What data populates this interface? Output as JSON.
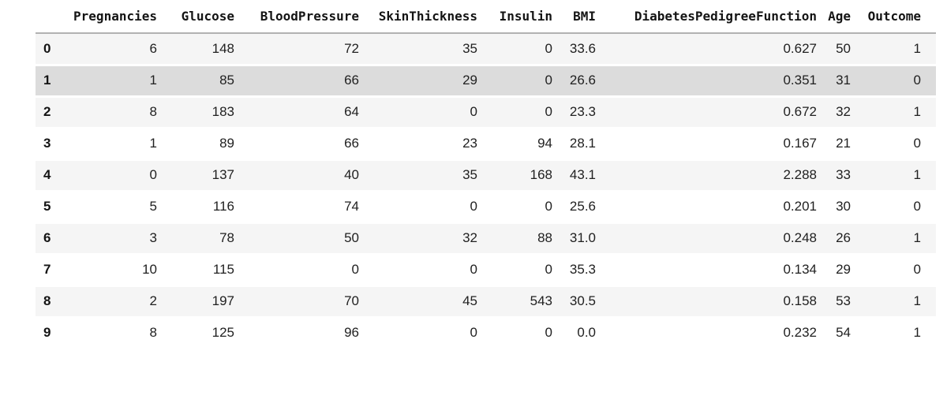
{
  "colors": {
    "row_even_bg": "#f5f5f5",
    "row_odd_bg": "#ffffff",
    "highlighted_row_bg": "#dcdcdc",
    "header_border": "#b2b2b2",
    "header_text": "#141414",
    "cell_text": "#212121"
  },
  "table": {
    "index_header": "",
    "columns": [
      "Pregnancies",
      "Glucose",
      "BloodPressure",
      "SkinThickness",
      "Insulin",
      "BMI",
      "DiabetesPedigreeFunction",
      "Age",
      "Outcome"
    ],
    "rows": [
      {
        "index": "0",
        "highlight": false,
        "cells": [
          "6",
          "148",
          "72",
          "35",
          "0",
          "33.6",
          "0.627",
          "50",
          "1"
        ]
      },
      {
        "index": "1",
        "highlight": true,
        "cells": [
          "1",
          "85",
          "66",
          "29",
          "0",
          "26.6",
          "0.351",
          "31",
          "0"
        ]
      },
      {
        "index": "2",
        "highlight": false,
        "cells": [
          "8",
          "183",
          "64",
          "0",
          "0",
          "23.3",
          "0.672",
          "32",
          "1"
        ]
      },
      {
        "index": "3",
        "highlight": false,
        "cells": [
          "1",
          "89",
          "66",
          "23",
          "94",
          "28.1",
          "0.167",
          "21",
          "0"
        ]
      },
      {
        "index": "4",
        "highlight": false,
        "cells": [
          "0",
          "137",
          "40",
          "35",
          "168",
          "43.1",
          "2.288",
          "33",
          "1"
        ]
      },
      {
        "index": "5",
        "highlight": false,
        "cells": [
          "5",
          "116",
          "74",
          "0",
          "0",
          "25.6",
          "0.201",
          "30",
          "0"
        ]
      },
      {
        "index": "6",
        "highlight": false,
        "cells": [
          "3",
          "78",
          "50",
          "32",
          "88",
          "31.0",
          "0.248",
          "26",
          "1"
        ]
      },
      {
        "index": "7",
        "highlight": false,
        "cells": [
          "10",
          "115",
          "0",
          "0",
          "0",
          "35.3",
          "0.134",
          "29",
          "0"
        ]
      },
      {
        "index": "8",
        "highlight": false,
        "cells": [
          "2",
          "197",
          "70",
          "45",
          "543",
          "30.5",
          "0.158",
          "53",
          "1"
        ]
      },
      {
        "index": "9",
        "highlight": false,
        "cells": [
          "8",
          "125",
          "96",
          "0",
          "0",
          "0.0",
          "0.232",
          "54",
          "1"
        ]
      }
    ]
  },
  "chart_data": {
    "type": "table",
    "title": "",
    "columns": [
      "Pregnancies",
      "Glucose",
      "BloodPressure",
      "SkinThickness",
      "Insulin",
      "BMI",
      "DiabetesPedigreeFunction",
      "Age",
      "Outcome"
    ],
    "index": [
      0,
      1,
      2,
      3,
      4,
      5,
      6,
      7,
      8,
      9
    ],
    "rows": [
      [
        6,
        148,
        72,
        35,
        0,
        33.6,
        0.627,
        50,
        1
      ],
      [
        1,
        85,
        66,
        29,
        0,
        26.6,
        0.351,
        31,
        0
      ],
      [
        8,
        183,
        64,
        0,
        0,
        23.3,
        0.672,
        32,
        1
      ],
      [
        1,
        89,
        66,
        23,
        94,
        28.1,
        0.167,
        21,
        0
      ],
      [
        0,
        137,
        40,
        35,
        168,
        43.1,
        2.288,
        33,
        1
      ],
      [
        5,
        116,
        74,
        0,
        0,
        25.6,
        0.201,
        30,
        0
      ],
      [
        3,
        78,
        50,
        32,
        88,
        31.0,
        0.248,
        26,
        1
      ],
      [
        10,
        115,
        0,
        0,
        0,
        35.3,
        0.134,
        29,
        0
      ],
      [
        2,
        197,
        70,
        45,
        543,
        30.5,
        0.158,
        53,
        1
      ],
      [
        8,
        125,
        96,
        0,
        0,
        0.0,
        0.232,
        54,
        1
      ]
    ],
    "highlighted_row_index": 1,
    "layout_hints": {
      "striped_rows": true,
      "index_column_bold": true,
      "header_font": "monospace-bold",
      "alignment": "right"
    }
  }
}
